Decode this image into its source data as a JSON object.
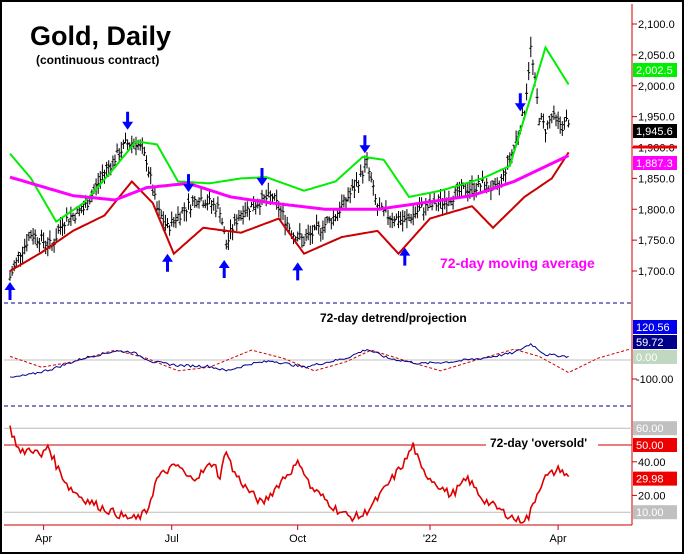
{
  "chart_data": {
    "type": "line",
    "title": "Gold, Daily",
    "subtitle": "(continuous contract)",
    "x_tick_labels": [
      {
        "day": 16,
        "label": "Apr"
      },
      {
        "day": 77,
        "label": "Jul"
      },
      {
        "day": 137,
        "label": "Oct"
      },
      {
        "day": 200,
        "label": "'22"
      },
      {
        "day": 261,
        "label": "Apr"
      }
    ],
    "price_panel": {
      "ylim": [
        1660,
        2130
      ],
      "y_ticks": [
        "1,700.0",
        "1,750.0",
        "1,800.0",
        "1,850.0",
        "1,900.0",
        "1,950.0",
        "2,000.0",
        "2,050.0",
        "2,100.0"
      ],
      "y_tick_values": [
        1700,
        1750,
        1800,
        1850,
        1900,
        1950,
        2000,
        2050,
        2100
      ],
      "price_keypoints": [
        [
          0,
          1690
        ],
        [
          5,
          1730
        ],
        [
          10,
          1760
        ],
        [
          20,
          1740
        ],
        [
          25,
          1780
        ],
        [
          35,
          1800
        ],
        [
          45,
          1860
        ],
        [
          55,
          1905
        ],
        [
          60,
          1910
        ],
        [
          65,
          1880
        ],
        [
          70,
          1800
        ],
        [
          75,
          1770
        ],
        [
          80,
          1790
        ],
        [
          90,
          1820
        ],
        [
          95,
          1810
        ],
        [
          100,
          1800
        ],
        [
          103,
          1740
        ],
        [
          106,
          1770
        ],
        [
          110,
          1795
        ],
        [
          120,
          1815
        ],
        [
          125,
          1820
        ],
        [
          130,
          1790
        ],
        [
          135,
          1760
        ],
        [
          140,
          1750
        ],
        [
          148,
          1770
        ],
        [
          155,
          1790
        ],
        [
          165,
          1840
        ],
        [
          170,
          1875
        ],
        [
          175,
          1800
        ],
        [
          180,
          1790
        ],
        [
          188,
          1780
        ],
        [
          195,
          1800
        ],
        [
          205,
          1810
        ],
        [
          215,
          1830
        ],
        [
          225,
          1840
        ],
        [
          232,
          1830
        ],
        [
          240,
          1900
        ],
        [
          245,
          1960
        ],
        [
          248,
          2060
        ],
        [
          252,
          1950
        ],
        [
          255,
          1930
        ],
        [
          258,
          1950
        ],
        [
          263,
          1935
        ],
        [
          266,
          1945
        ]
      ],
      "moving_average": {
        "name": "72-day moving average",
        "color": "#ff00ff",
        "points": [
          [
            0,
            1852
          ],
          [
            30,
            1822
          ],
          [
            50,
            1815
          ],
          [
            65,
            1835
          ],
          [
            85,
            1842
          ],
          [
            105,
            1820
          ],
          [
            125,
            1810
          ],
          [
            150,
            1800
          ],
          [
            175,
            1800
          ],
          [
            200,
            1812
          ],
          [
            220,
            1822
          ],
          [
            240,
            1845
          ],
          [
            266,
            1887
          ]
        ]
      },
      "upper_band": {
        "color": "#00ee00",
        "points": [
          [
            0,
            1890
          ],
          [
            10,
            1850
          ],
          [
            22,
            1780
          ],
          [
            35,
            1810
          ],
          [
            48,
            1860
          ],
          [
            60,
            1910
          ],
          [
            70,
            1905
          ],
          [
            80,
            1845
          ],
          [
            95,
            1842
          ],
          [
            110,
            1850
          ],
          [
            122,
            1852
          ],
          [
            140,
            1830
          ],
          [
            155,
            1845
          ],
          [
            168,
            1885
          ],
          [
            178,
            1880
          ],
          [
            190,
            1820
          ],
          [
            205,
            1830
          ],
          [
            225,
            1850
          ],
          [
            238,
            1870
          ],
          [
            246,
            1960
          ],
          [
            255,
            2062
          ],
          [
            266,
            2002
          ]
        ]
      },
      "lower_band": {
        "color": "#cc0000",
        "points": [
          [
            0,
            1700
          ],
          [
            15,
            1730
          ],
          [
            30,
            1765
          ],
          [
            45,
            1790
          ],
          [
            58,
            1845
          ],
          [
            68,
            1810
          ],
          [
            78,
            1728
          ],
          [
            92,
            1770
          ],
          [
            110,
            1762
          ],
          [
            128,
            1785
          ],
          [
            140,
            1728
          ],
          [
            158,
            1755
          ],
          [
            175,
            1765
          ],
          [
            185,
            1728
          ],
          [
            200,
            1785
          ],
          [
            220,
            1805
          ],
          [
            230,
            1770
          ],
          [
            245,
            1820
          ],
          [
            258,
            1850
          ],
          [
            266,
            1892
          ]
        ]
      },
      "cycle_top_arrows": [
        56,
        85,
        120,
        169,
        243
      ],
      "cycle_bottom_arrows": [
        0,
        75,
        102,
        137,
        188
      ],
      "labels": {
        "ma": "72-day moving average",
        "last_upper": "2,002.5",
        "last_price": "1,945.6",
        "last_ma": "1,887.3"
      }
    },
    "detrend_panel": {
      "title": "72-day detrend/projection",
      "y_ticks": [
        "-100.00"
      ],
      "readouts": [
        "120.56",
        "59.72",
        "0.00"
      ],
      "detrend_points": [
        [
          0,
          -100
        ],
        [
          10,
          -80
        ],
        [
          20,
          -50
        ],
        [
          35,
          10
        ],
        [
          50,
          50
        ],
        [
          58,
          45
        ],
        [
          68,
          -10
        ],
        [
          80,
          -30
        ],
        [
          95,
          -35
        ],
        [
          103,
          -60
        ],
        [
          115,
          -20
        ],
        [
          125,
          -5
        ],
        [
          140,
          -40
        ],
        [
          150,
          -15
        ],
        [
          160,
          10
        ],
        [
          170,
          60
        ],
        [
          180,
          10
        ],
        [
          195,
          -20
        ],
        [
          210,
          -10
        ],
        [
          225,
          10
        ],
        [
          240,
          40
        ],
        [
          248,
          90
        ],
        [
          255,
          30
        ],
        [
          266,
          20
        ]
      ],
      "projection_points": [
        [
          0,
          20
        ],
        [
          15,
          -40
        ],
        [
          30,
          -10
        ],
        [
          50,
          55
        ],
        [
          65,
          10
        ],
        [
          80,
          -60
        ],
        [
          95,
          -40
        ],
        [
          115,
          55
        ],
        [
          130,
          10
        ],
        [
          145,
          -60
        ],
        [
          160,
          -10
        ],
        [
          172,
          55
        ],
        [
          190,
          -10
        ],
        [
          205,
          -60
        ],
        [
          222,
          0
        ],
        [
          240,
          60
        ],
        [
          252,
          20
        ],
        [
          266,
          -70
        ],
        [
          280,
          10
        ],
        [
          295,
          60
        ]
      ]
    },
    "oversold_panel": {
      "title": "72-day 'oversold'",
      "y_ticks": [
        "40.00",
        "20.00"
      ],
      "readouts": [
        "60.00",
        "50.00",
        "29.98",
        "10.00"
      ],
      "threshold": 50,
      "points": [
        [
          0,
          60
        ],
        [
          5,
          45
        ],
        [
          10,
          48
        ],
        [
          15,
          43
        ],
        [
          18,
          50
        ],
        [
          22,
          38
        ],
        [
          28,
          25
        ],
        [
          35,
          18
        ],
        [
          45,
          12
        ],
        [
          55,
          7
        ],
        [
          60,
          6
        ],
        [
          65,
          10
        ],
        [
          70,
          30
        ],
        [
          75,
          35
        ],
        [
          80,
          38
        ],
        [
          85,
          30
        ],
        [
          90,
          32
        ],
        [
          97,
          40
        ],
        [
          100,
          30
        ],
        [
          103,
          48
        ],
        [
          106,
          35
        ],
        [
          112,
          25
        ],
        [
          120,
          15
        ],
        [
          125,
          22
        ],
        [
          130,
          30
        ],
        [
          138,
          40
        ],
        [
          143,
          25
        ],
        [
          148,
          20
        ],
        [
          155,
          12
        ],
        [
          162,
          7
        ],
        [
          168,
          8
        ],
        [
          175,
          18
        ],
        [
          182,
          30
        ],
        [
          188,
          40
        ],
        [
          192,
          50
        ],
        [
          196,
          35
        ],
        [
          205,
          25
        ],
        [
          210,
          20
        ],
        [
          218,
          30
        ],
        [
          225,
          18
        ],
        [
          235,
          10
        ],
        [
          242,
          5
        ],
        [
          247,
          7
        ],
        [
          250,
          18
        ],
        [
          254,
          30
        ],
        [
          258,
          33
        ],
        [
          262,
          36
        ],
        [
          266,
          30
        ]
      ]
    }
  }
}
